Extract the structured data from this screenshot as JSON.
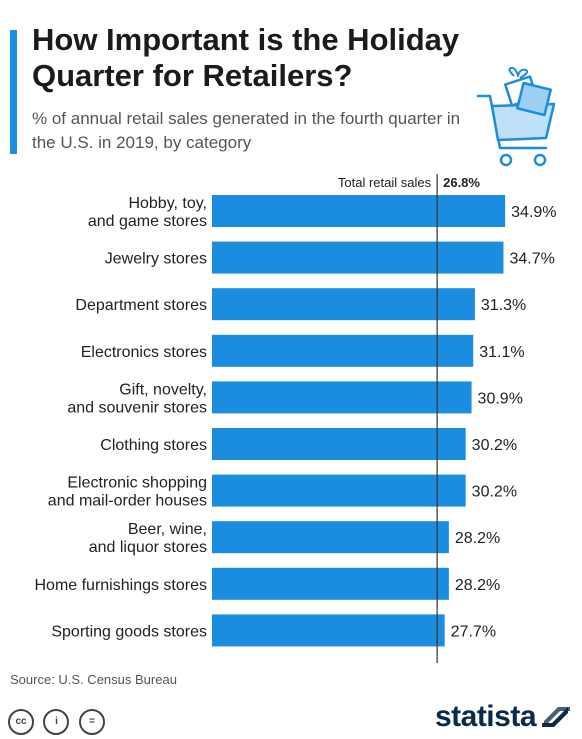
{
  "header": {
    "title": "How Important is the Holiday Quarter for Retailers?",
    "subtitle": "% of annual retail sales generated in the fourth quarter in the U.S. in 2019, by category"
  },
  "chart_data": {
    "type": "bar",
    "orientation": "horizontal",
    "categories": [
      "Hobby, toy, and game stores",
      "Jewelry stores",
      "Department stores",
      "Electronics stores",
      "Gift, novelty, and souvenir stores",
      "Clothing stores",
      "Electronic shopping and mail-order houses",
      "Beer, wine, and liquor stores",
      "Home furnishings stores",
      "Sporting goods stores"
    ],
    "category_lines": [
      [
        "Hobby, toy,",
        "and game stores"
      ],
      [
        "Jewelry stores"
      ],
      [
        "Department stores"
      ],
      [
        "Electronics stores"
      ],
      [
        "Gift, novelty,",
        "and souvenir stores"
      ],
      [
        "Clothing stores"
      ],
      [
        "Electronic shopping",
        "and mail-order houses"
      ],
      [
        "Beer, wine,",
        "and liquor stores"
      ],
      [
        "Home furnishings stores"
      ],
      [
        "Sporting goods stores"
      ]
    ],
    "values": [
      34.9,
      34.7,
      31.3,
      31.1,
      30.9,
      30.2,
      30.2,
      28.2,
      28.2,
      27.7
    ],
    "value_labels": [
      "34.9%",
      "34.7%",
      "31.3%",
      "31.1%",
      "30.9%",
      "30.2%",
      "30.2%",
      "28.2%",
      "28.2%",
      "27.7%"
    ],
    "reference_line": {
      "label": "Total retail sales",
      "value": 26.8,
      "value_label": "26.8%"
    },
    "bar_color": "#1a8de0",
    "reference_line_color": "#333333"
  },
  "footer": {
    "source": "Source: U.S. Census Bureau",
    "cc_icons": [
      "cc",
      "i",
      "="
    ],
    "brand": "statista"
  },
  "colors": {
    "accent": "#1a8de0",
    "brand": "#0b2a4a"
  }
}
